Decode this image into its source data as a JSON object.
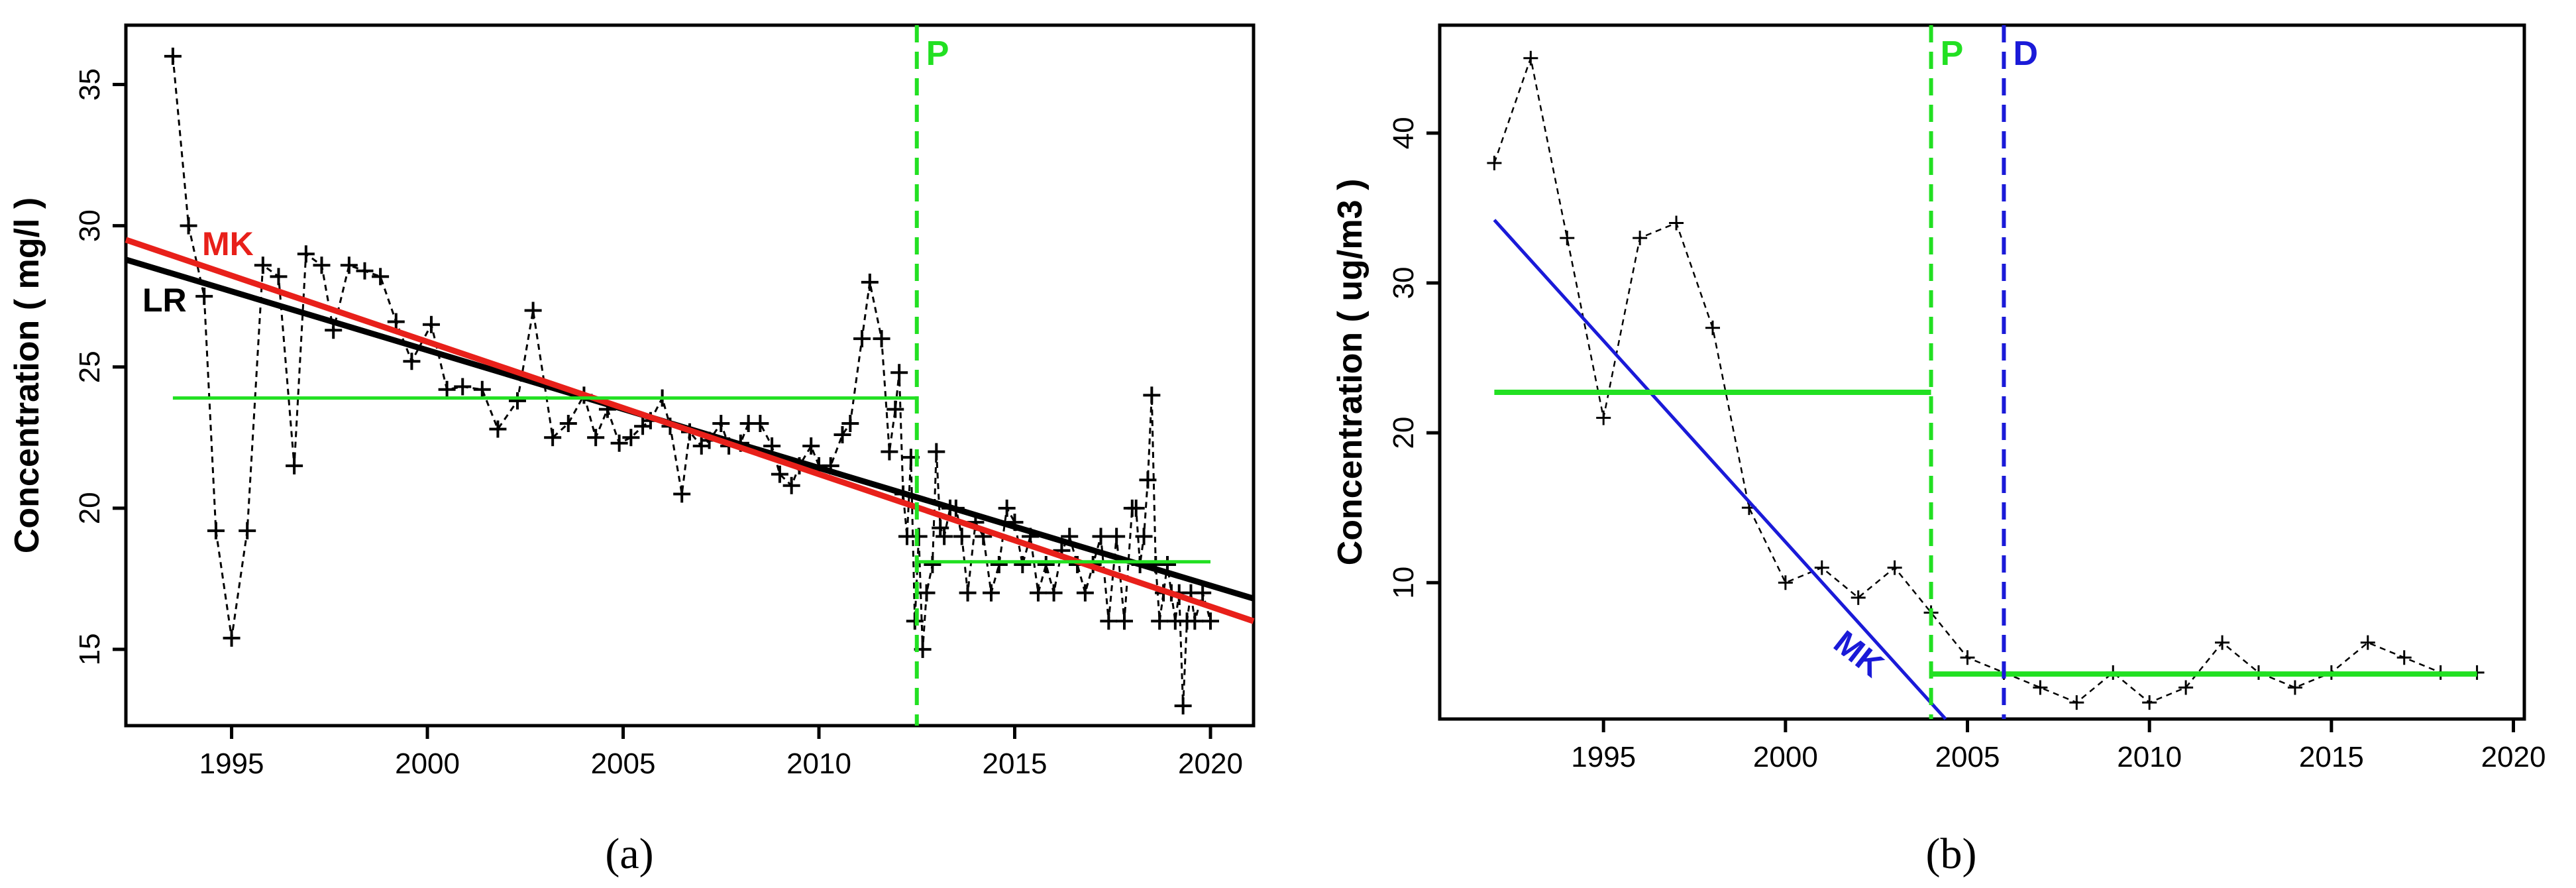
{
  "chart_data": [
    {
      "panel": "a",
      "panel_label": "(a)",
      "type": "line",
      "ylabel": "Concentration  ( mg/l )",
      "xlim": [
        1992.3,
        2021.1
      ],
      "ylim": [
        12.3,
        37.1
      ],
      "xticks": [
        1995,
        2000,
        2005,
        2010,
        2015,
        2020
      ],
      "yticks": [
        15,
        20,
        25,
        30,
        35
      ],
      "colors": {
        "observed": "#000000",
        "lr": "#000000",
        "mk": "#e8201a",
        "mean": "#22e022",
        "pettitt": "#22e022"
      },
      "series": [
        {
          "name": "observed",
          "x": [
            1993.5,
            1993.9,
            1994.3,
            1994.6,
            1995.0,
            1995.4,
            1995.8,
            1996.2,
            1996.6,
            1996.9,
            1997.3,
            1997.6,
            1998.0,
            1998.4,
            1998.8,
            1999.2,
            1999.6,
            2000.1,
            2000.5,
            2000.9,
            2001.4,
            2001.8,
            2002.3,
            2002.7,
            2003.2,
            2003.6,
            2004.0,
            2004.3,
            2004.6,
            2004.9,
            2005.2,
            2005.5,
            2005.7,
            2006.0,
            2006.2,
            2006.5,
            2006.7,
            2007.0,
            2007.2,
            2007.5,
            2007.7,
            2008.0,
            2008.2,
            2008.5,
            2008.8,
            2009.0,
            2009.3,
            2009.5,
            2009.8,
            2010.0,
            2010.3,
            2010.6,
            2010.8,
            2011.1,
            2011.3,
            2011.6,
            2011.8,
            2011.95,
            2012.05,
            2012.15,
            2012.25,
            2012.35,
            2012.45,
            2012.55,
            2012.65,
            2012.75,
            2012.9,
            2013.0,
            2013.1,
            2013.2,
            2013.35,
            2013.5,
            2013.65,
            2013.8,
            2014.0,
            2014.2,
            2014.4,
            2014.6,
            2014.8,
            2015.0,
            2015.2,
            2015.4,
            2015.6,
            2015.8,
            2016.0,
            2016.2,
            2016.4,
            2016.6,
            2016.8,
            2017.0,
            2017.2,
            2017.4,
            2017.6,
            2017.8,
            2018.0,
            2018.1,
            2018.2,
            2018.3,
            2018.4,
            2018.5,
            2018.6,
            2018.7,
            2018.8,
            2018.9,
            2019.0,
            2019.1,
            2019.2,
            2019.3,
            2019.4,
            2019.5,
            2019.6,
            2019.8,
            2020.0
          ],
          "y": [
            36.0,
            30.0,
            27.5,
            19.2,
            15.4,
            19.2,
            28.6,
            28.2,
            21.5,
            29.0,
            28.6,
            26.3,
            28.6,
            28.4,
            28.2,
            26.6,
            25.2,
            26.5,
            24.2,
            24.3,
            24.2,
            22.8,
            23.8,
            27.0,
            22.5,
            23.0,
            24.0,
            22.5,
            23.5,
            22.3,
            22.5,
            22.9,
            23.1,
            23.9,
            22.9,
            20.5,
            22.7,
            22.2,
            22.4,
            23.0,
            22.2,
            22.3,
            23.0,
            23.0,
            22.2,
            21.2,
            20.8,
            21.5,
            22.2,
            21.5,
            21.5,
            22.6,
            23.0,
            26.0,
            28.0,
            26.0,
            22.0,
            23.5,
            24.8,
            20.5,
            19.0,
            21.8,
            16.0,
            19.0,
            15.0,
            17.0,
            18.0,
            22.0,
            19.3,
            19.0,
            20.0,
            20.0,
            19.0,
            17.0,
            19.5,
            19.0,
            17.0,
            18.0,
            20.0,
            19.5,
            18.0,
            19.0,
            17.0,
            18.0,
            17.0,
            18.5,
            19.0,
            18.0,
            17.0,
            18.0,
            19.0,
            16.0,
            19.0,
            16.0,
            20.0,
            20.0,
            18.0,
            19.0,
            21.0,
            24.0,
            18.0,
            16.0,
            17.0,
            18.0,
            17.0,
            16.0,
            17.0,
            13.0,
            16.0,
            17.0,
            16.0,
            17.0,
            16.0
          ]
        },
        {
          "name": "LR",
          "x": [
            1992.3,
            2021.1
          ],
          "y": [
            28.8,
            16.8
          ]
        },
        {
          "name": "MK",
          "x": [
            1992.3,
            2021.1
          ],
          "y": [
            29.5,
            16.0
          ]
        },
        {
          "name": "mean before change",
          "x": [
            1993.5,
            2012.5
          ],
          "y": [
            23.9,
            23.9
          ]
        },
        {
          "name": "mean after change",
          "x": [
            2012.5,
            2020.0
          ],
          "y": [
            18.1,
            18.1
          ]
        }
      ],
      "change_points": [
        {
          "name": "P",
          "x": 2012.5,
          "color": "#22e022"
        }
      ],
      "trend_labels": [
        {
          "text": "MK",
          "color": "#e8201a"
        },
        {
          "text": "LR",
          "color": "#000000"
        }
      ]
    },
    {
      "panel": "b",
      "panel_label": "(b)",
      "type": "line",
      "ylabel": "Concentration  ( ug/m3  )",
      "xlim": [
        1990.5,
        2020.3
      ],
      "ylim": [
        0.9,
        47.2
      ],
      "xticks": [
        1995,
        2000,
        2005,
        2010,
        2015,
        2020
      ],
      "yticks": [
        10,
        20,
        30,
        40
      ],
      "colors": {
        "observed": "#000000",
        "mk": "#1a1ad8",
        "mean": "#22e022",
        "pettitt": "#22e022",
        "d": "#1a1ad8"
      },
      "series": [
        {
          "name": "observed",
          "x": [
            1992,
            1993,
            1994,
            1995,
            1996,
            1997,
            1998,
            1999,
            2000,
            2001,
            2002,
            2003,
            2004,
            2005,
            2006,
            2007,
            2008,
            2009,
            2010,
            2011,
            2012,
            2013,
            2014,
            2015,
            2016,
            2017,
            2018,
            2019
          ],
          "y": [
            38,
            45,
            33,
            21,
            33,
            34,
            27,
            15,
            10,
            11,
            9,
            11,
            8,
            5,
            4,
            3,
            2,
            4,
            2,
            3,
            6,
            4,
            3,
            4,
            6,
            5,
            4,
            4
          ]
        },
        {
          "name": "MK",
          "x": [
            1992.0,
            2004.4
          ],
          "y": [
            34.2,
            0.9
          ]
        },
        {
          "name": "mean before change",
          "x": [
            1992.0,
            2004.0
          ],
          "y": [
            22.7,
            22.7
          ]
        },
        {
          "name": "mean after change",
          "x": [
            2004.0,
            2019.0
          ],
          "y": [
            3.9,
            3.9
          ]
        }
      ],
      "change_points": [
        {
          "name": "P",
          "x": 2004.0,
          "color": "#22e022"
        },
        {
          "name": "D",
          "x": 2006.0,
          "color": "#1a1ad8"
        }
      ],
      "trend_labels": [
        {
          "text": "MK",
          "color": "#1a1ad8"
        }
      ]
    }
  ]
}
